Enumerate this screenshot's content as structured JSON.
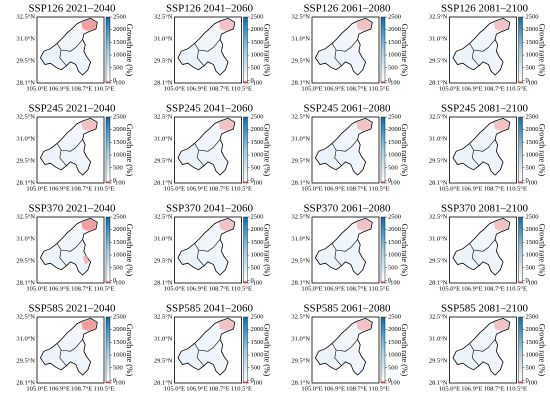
{
  "panels": [
    {
      "title": "SSP126 2021–2040"
    },
    {
      "title": "SSP126 2041–2060"
    },
    {
      "title": "SSP126 2061–2080"
    },
    {
      "title": "SSP126 2081–2100"
    },
    {
      "title": "SSP245 2021–2040"
    },
    {
      "title": "SSP245 2041–2060"
    },
    {
      "title": "SSP245 2061–2080"
    },
    {
      "title": "SSP245 2081–2100"
    },
    {
      "title": "SSP370 2021–2040"
    },
    {
      "title": "SSP370 2041–2060"
    },
    {
      "title": "SSP370 2061–2080"
    },
    {
      "title": "SSP370 2081–2100"
    },
    {
      "title": "SSP585 2021–2040"
    },
    {
      "title": "SSP585 2041–2060"
    },
    {
      "title": "SSP585 2061–2080"
    },
    {
      "title": "SSP585 2081–2100"
    }
  ],
  "lat_ticks": [
    "32.5°N",
    "31.0°N",
    "29.5°N",
    "28.1°N"
  ],
  "lon_ticks": [
    "105.0°E",
    "106.9°E",
    "108.7°E",
    "110.5°E"
  ],
  "colorbar": {
    "label": "Growth rate (%)",
    "lim": [
      -100,
      2500
    ],
    "ticks": [
      2500,
      2000,
      1500,
      1000,
      500,
      0,
      -100
    ]
  }
}
